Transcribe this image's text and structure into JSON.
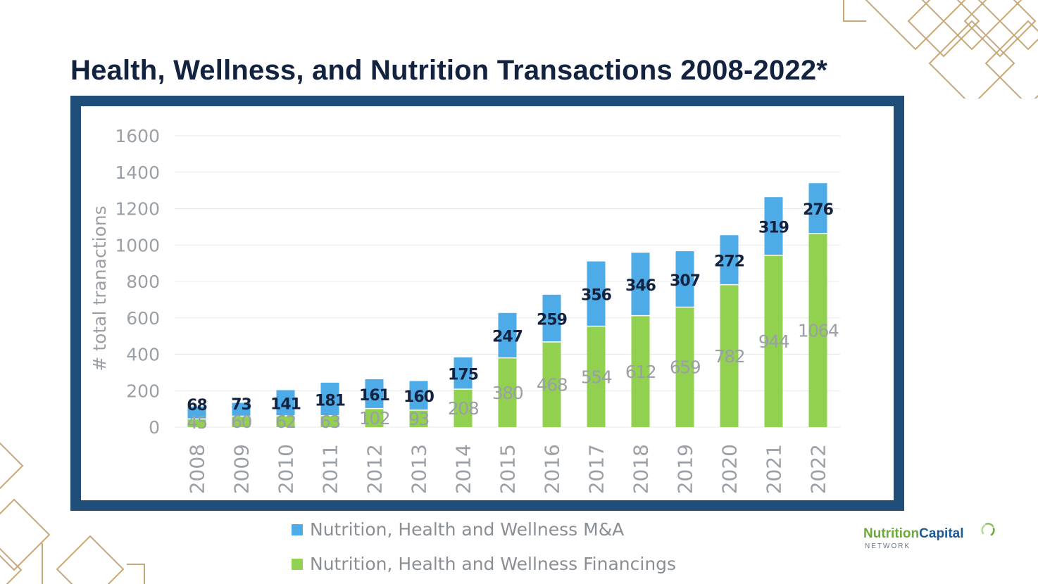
{
  "title": "Health, Wellness, and Nutrition Transactions 2008-2022*",
  "logo": {
    "word1": "Nutrition",
    "word2": "Capital",
    "subtitle": "NETWORK"
  },
  "colors": {
    "mna": "#4dabe8",
    "financings": "#92d050",
    "frame": "#1f4e79",
    "title": "#13233f",
    "mna_label": "#13233f",
    "financings_label": "#9aa0a6",
    "axis_text": "#9aa0a6",
    "gridline": "#e8e8e8",
    "decoration": "#c8a878"
  },
  "chart_data": {
    "type": "bar",
    "stacked": true,
    "ylabel": "# total tranactions",
    "xlabel": "",
    "ylim": [
      0,
      1600
    ],
    "yticks": [
      0,
      200,
      400,
      600,
      800,
      1000,
      1200,
      1400,
      1600
    ],
    "grid": true,
    "legend_position": "bottom",
    "categories": [
      "2008",
      "2009",
      "2010",
      "2011",
      "2012",
      "2013",
      "2014",
      "2015",
      "2016",
      "2017",
      "2018",
      "2019",
      "2020",
      "2021",
      "2022"
    ],
    "series": [
      {
        "name": "Nutrition, Health and Wellness Financings",
        "values": [
          45,
          60,
          62,
          63,
          102,
          93,
          208,
          380,
          468,
          554,
          612,
          659,
          782,
          944,
          1064
        ]
      },
      {
        "name": "Nutrition, Health and Wellness M&A",
        "values": [
          68,
          73,
          141,
          181,
          161,
          160,
          175,
          247,
          259,
          356,
          346,
          307,
          272,
          319,
          276
        ]
      }
    ]
  }
}
